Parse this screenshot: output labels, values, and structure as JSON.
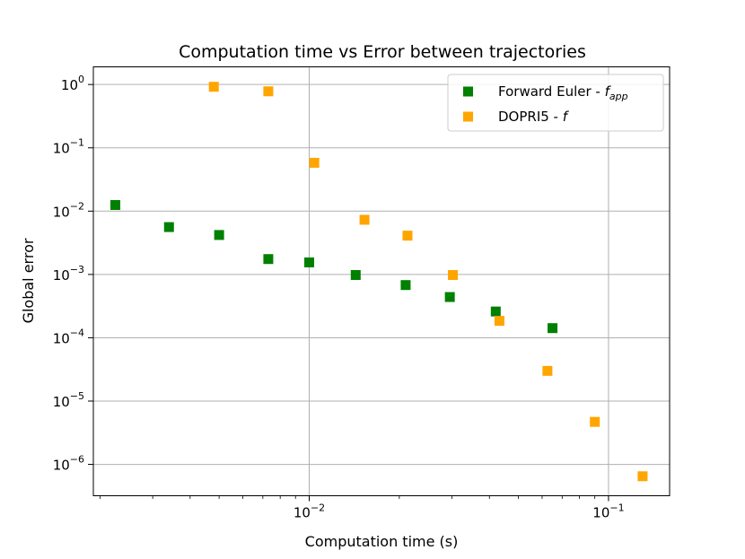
{
  "chart_data": {
    "type": "scatter",
    "title": "Computation time vs Error between trajectories",
    "xlabel": "Computation time (s)",
    "ylabel": "Global error",
    "x_scale": "log",
    "y_scale": "log",
    "xlim": [
      0.0019,
      0.16
    ],
    "ylim": [
      3.2e-07,
      1.9
    ],
    "x_ticks": [
      {
        "value": 0.01,
        "base": "10",
        "exp": "−2"
      },
      {
        "value": 0.1,
        "base": "10",
        "exp": "−1"
      }
    ],
    "y_ticks": [
      {
        "value": 1,
        "base": "10",
        "exp": "0"
      },
      {
        "value": 0.1,
        "base": "10",
        "exp": "−1"
      },
      {
        "value": 0.01,
        "base": "10",
        "exp": "−2"
      },
      {
        "value": 0.001,
        "base": "10",
        "exp": "−3"
      },
      {
        "value": 0.0001,
        "base": "10",
        "exp": "−4"
      },
      {
        "value": 1e-05,
        "base": "10",
        "exp": "−5"
      },
      {
        "value": 1e-06,
        "base": "10",
        "exp": "−6"
      }
    ],
    "grid": true,
    "legend_position": "top-right",
    "series": [
      {
        "name": "Forward Euler - f",
        "name_main": "Forward Euler - ",
        "name_italic": "f",
        "name_sub": "app",
        "color": "#008000",
        "marker": "square",
        "x": [
          0.00225,
          0.0034,
          0.005,
          0.0073,
          0.01,
          0.0143,
          0.021,
          0.0295,
          0.042,
          0.065
        ],
        "y": [
          0.0125,
          0.0056,
          0.0042,
          0.00175,
          0.00155,
          0.00098,
          0.00068,
          0.00044,
          0.00026,
          0.000142
        ]
      },
      {
        "name": "DOPRI5 - f",
        "name_main": "DOPRI5 - ",
        "name_italic": "f",
        "name_sub": "",
        "color": "#ffa500",
        "marker": "square",
        "x": [
          0.0048,
          0.0073,
          0.0104,
          0.0153,
          0.0213,
          0.0302,
          0.0432,
          0.0625,
          0.09,
          0.13
        ],
        "y": [
          0.92,
          0.78,
          0.058,
          0.0073,
          0.0041,
          0.00098,
          0.000185,
          3e-05,
          4.7e-06,
          6.5e-07
        ]
      }
    ]
  }
}
